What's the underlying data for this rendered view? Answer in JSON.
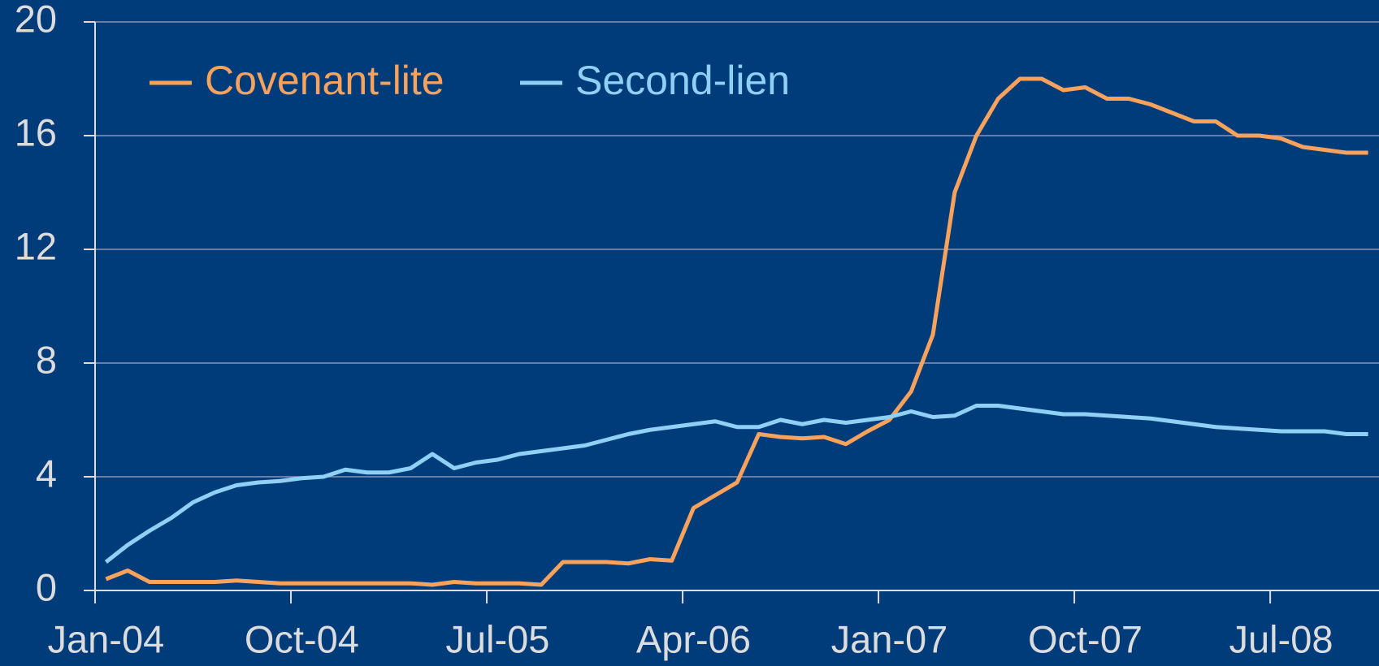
{
  "chart_data": {
    "type": "line",
    "categories": [
      "Jan-04",
      null,
      null,
      null,
      null,
      null,
      null,
      null,
      null,
      "Oct-04",
      null,
      null,
      null,
      null,
      null,
      null,
      null,
      null,
      "Jul-05",
      null,
      null,
      null,
      null,
      null,
      null,
      null,
      null,
      "Apr-06",
      null,
      null,
      null,
      null,
      null,
      null,
      null,
      null,
      "Jan-07",
      null,
      null,
      null,
      null,
      null,
      null,
      null,
      null,
      "Oct-07",
      null,
      null,
      null,
      null,
      null,
      null,
      null,
      null,
      "Jul-08",
      null,
      null,
      null,
      null
    ],
    "series": [
      {
        "name": "Covenant-lite",
        "color": "#f9a25c",
        "values": [
          0.4,
          0.7,
          0.3,
          0.3,
          0.3,
          0.3,
          0.35,
          0.3,
          0.25,
          0.25,
          0.25,
          0.25,
          0.25,
          0.25,
          0.25,
          0.2,
          0.3,
          0.25,
          0.25,
          0.25,
          0.2,
          1.0,
          1.0,
          1.0,
          0.95,
          1.1,
          1.05,
          2.9,
          3.35,
          3.8,
          5.5,
          5.4,
          5.35,
          5.4,
          5.15,
          5.6,
          6.0,
          7.0,
          9.0,
          14.0,
          16.0,
          17.3,
          18.0,
          18.0,
          17.6,
          17.7,
          17.3,
          17.3,
          17.1,
          16.8,
          16.5,
          16.5,
          16.0,
          16.0,
          15.9,
          15.6,
          15.5,
          15.4,
          15.4
        ]
      },
      {
        "name": "Second-lien",
        "color": "#8fd0f5",
        "values": [
          1.0,
          1.6,
          2.1,
          2.55,
          3.1,
          3.45,
          3.7,
          3.8,
          3.85,
          3.95,
          4.0,
          4.25,
          4.15,
          4.15,
          4.3,
          4.8,
          4.3,
          4.5,
          4.6,
          4.8,
          4.9,
          5.0,
          5.1,
          5.3,
          5.5,
          5.65,
          5.75,
          5.85,
          5.95,
          5.75,
          5.75,
          6.0,
          5.85,
          6.0,
          5.9,
          6.0,
          6.1,
          6.3,
          6.1,
          6.15,
          6.5,
          6.5,
          6.4,
          6.3,
          6.2,
          6.2,
          6.15,
          6.1,
          6.05,
          5.95,
          5.85,
          5.75,
          5.7,
          5.65,
          5.6,
          5.6,
          5.6,
          5.5,
          5.5
        ]
      }
    ],
    "ylim": [
      0,
      20
    ],
    "yticks": [
      0,
      4,
      8,
      12,
      16,
      20
    ],
    "grid": true,
    "legend": "top-left"
  }
}
